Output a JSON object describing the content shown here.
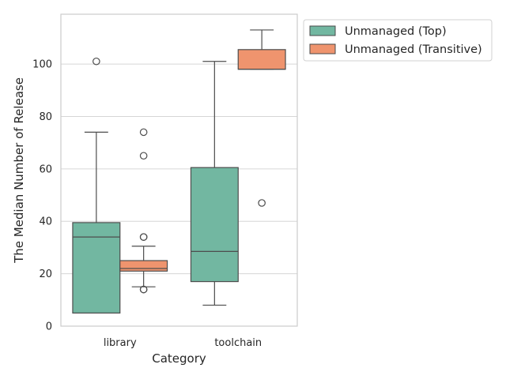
{
  "chart_data": {
    "type": "box",
    "xlabel": "Category",
    "ylabel": "The Median Number of Release",
    "categories": [
      "library",
      "toolchain"
    ],
    "ylim": [
      0,
      119
    ],
    "yticks": [
      0,
      20,
      40,
      60,
      80,
      100
    ],
    "grid": "y",
    "legend_position": "top-right, outside plot",
    "series": [
      {
        "name": "Unmanaged (Top)",
        "color": "#72b7a1",
        "boxes": [
          {
            "category": "library",
            "whisker_low": 5,
            "q1": 5,
            "median": 34,
            "q3": 39.5,
            "whisker_high": 74,
            "outliers": [
              101
            ]
          },
          {
            "category": "toolchain",
            "whisker_low": 8,
            "q1": 17,
            "median": 28.5,
            "q3": 60.5,
            "whisker_high": 101,
            "outliers": []
          }
        ]
      },
      {
        "name": "Unmanaged (Transitive)",
        "color": "#ef946e",
        "boxes": [
          {
            "category": "library",
            "whisker_low": 15,
            "q1": 21,
            "median": 22,
            "q3": 25,
            "whisker_high": 30.5,
            "outliers": [
              14,
              14,
              34,
              34,
              65,
              74
            ]
          },
          {
            "category": "toolchain",
            "whisker_low": 98,
            "q1": 98,
            "median": 98,
            "q3": 105.5,
            "whisker_high": 113,
            "outliers": [
              47
            ]
          }
        ]
      }
    ]
  }
}
